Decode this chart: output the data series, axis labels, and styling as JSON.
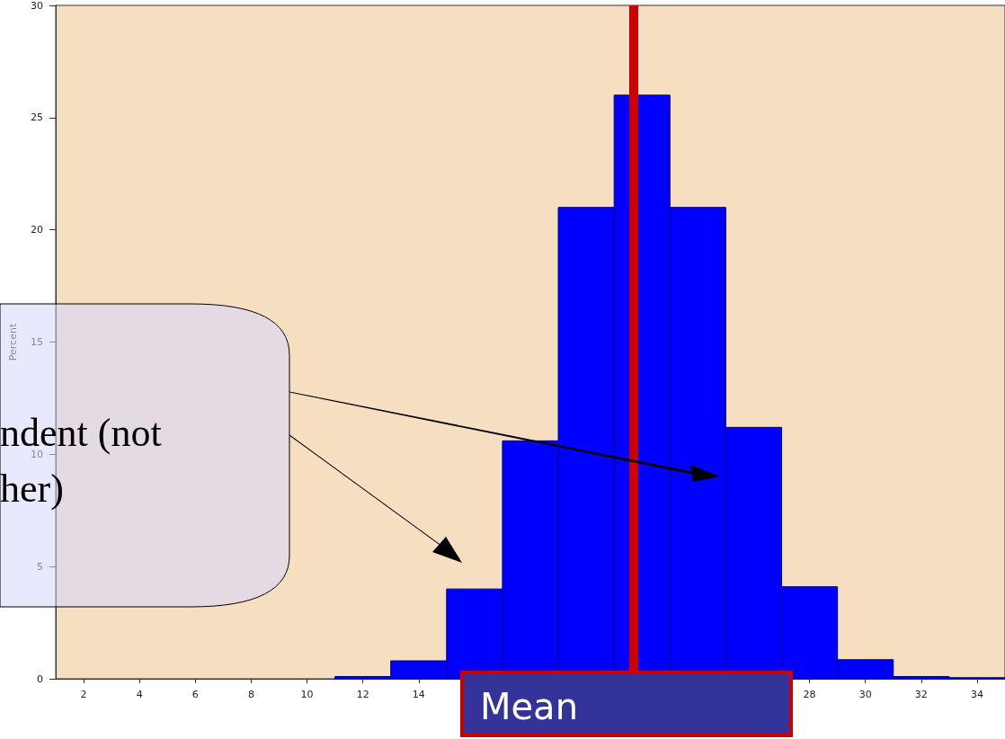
{
  "chart_data": {
    "type": "histogram",
    "ylabel": "Percent",
    "bins": [
      11,
      13,
      15,
      17,
      19,
      21,
      23,
      25,
      27,
      29,
      31,
      33,
      35
    ],
    "values": [
      0.1,
      0.8,
      4.0,
      10.6,
      21.0,
      26.0,
      21.0,
      11.2,
      4.1,
      0.85,
      0.1,
      0.05
    ],
    "color": "#0000ff",
    "xlim": [
      1,
      35
    ],
    "xticks": [
      2,
      4,
      6,
      8,
      10,
      12,
      14,
      28,
      30,
      32,
      34
    ],
    "ylim": [
      0,
      30
    ],
    "yticks": [
      0,
      5,
      10,
      15,
      20,
      25,
      30
    ],
    "ref_lines": [
      {
        "axis": "x",
        "value": 21.7,
        "label": "Mean",
        "color": "#cc0000"
      }
    ],
    "annotations": [
      "ndent (not\nher)"
    ],
    "grid": false
  }
}
